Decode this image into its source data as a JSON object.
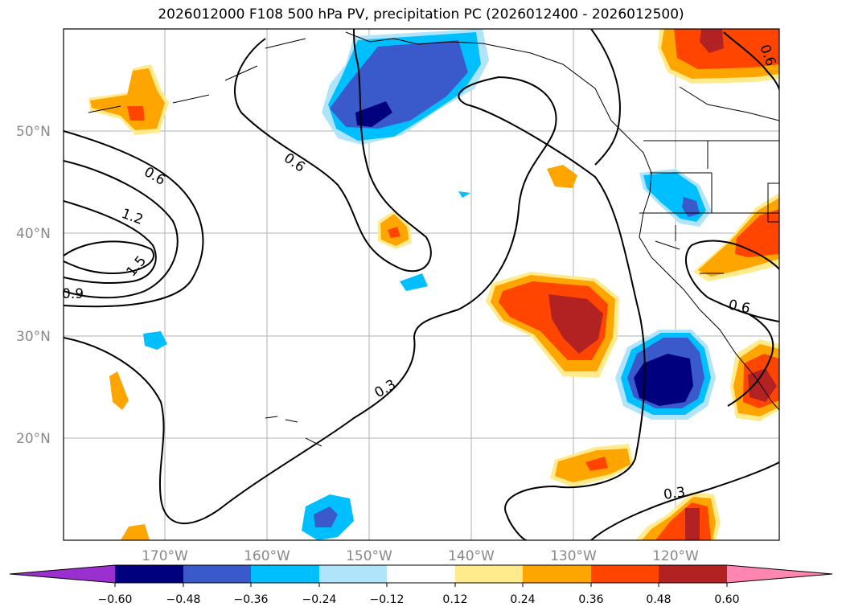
{
  "title": "2026012000 F108 500 hPa PV, precipitation PC (2026012400 - 2026012500)",
  "colors": {
    "neg_extend": "#9b30d0",
    "n060": "#00007f",
    "n048": "#3a5acb",
    "n036": "#00bfff",
    "n024": "#afe4fa",
    "n012": "#ffffff",
    "p012": "#ffea8c",
    "p024": "#ffa500",
    "p036": "#ff4500",
    "p048": "#b22222",
    "pos_extend": "#ff86b0",
    "grid": "#b0b0b0",
    "contour": "#000000"
  },
  "map": {
    "lat_labels": [
      "50°N",
      "40°N",
      "30°N",
      "20°N"
    ],
    "lon_labels": [
      "170°W",
      "160°W",
      "150°W",
      "140°W",
      "130°W",
      "120°W"
    ],
    "contour_labels": [
      "0.6",
      "1.2",
      "1.5",
      "0.9",
      "0.6",
      "0.3",
      "0.6",
      "0.3",
      "0.6"
    ]
  },
  "colorbar": {
    "ticks": [
      "−0.60",
      "−0.48",
      "−0.36",
      "−0.24",
      "−0.12",
      "0.12",
      "0.24",
      "0.36",
      "0.48",
      "0.60"
    ]
  }
}
